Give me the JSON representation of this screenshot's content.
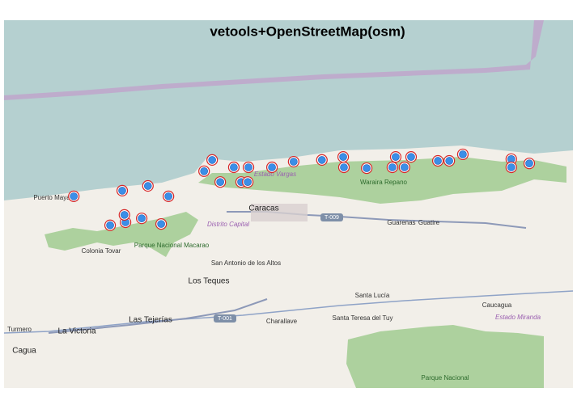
{
  "title": "vetools+OpenStreetMap(osm)",
  "places": [
    "Puerto Maya",
    "Colonia Tovar",
    "Parque Nacional Macarao",
    "Los Teques",
    "La Victoria",
    "Las Tejerías",
    "Cagua",
    "Turmero",
    "Caracas",
    "Distrito Capital",
    "Estado Vargas",
    "Waraira Repano",
    "Guarenas",
    "Guatire",
    "San Antonio de los Altos",
    "Santa Lucía",
    "Santa Teresa del Tuy",
    "Caucagua",
    "Estado Miranda",
    "Charallave",
    "Parque Nacional",
    "T-009",
    "T-001"
  ],
  "points": [
    {
      "lon": -67.26,
      "lat": 10.543
    },
    {
      "lon": -67.128,
      "lat": 10.556
    },
    {
      "lon": -67.058,
      "lat": 10.567
    },
    {
      "lon": -67.002,
      "lat": 10.543
    },
    {
      "lon": -67.161,
      "lat": 10.476
    },
    {
      "lon": -67.119,
      "lat": 10.483
    },
    {
      "lon": -67.122,
      "lat": 10.5
    },
    {
      "lon": -67.075,
      "lat": 10.492
    },
    {
      "lon": -67.022,
      "lat": 10.479
    },
    {
      "lon": -66.905,
      "lat": 10.601
    },
    {
      "lon": -66.883,
      "lat": 10.627
    },
    {
      "lon": -66.861,
      "lat": 10.576
    },
    {
      "lon": -66.824,
      "lat": 10.61
    },
    {
      "lon": -66.804,
      "lat": 10.576
    },
    {
      "lon": -66.784,
      "lat": 10.61
    },
    {
      "lon": -66.786,
      "lat": 10.576
    },
    {
      "lon": -66.72,
      "lat": 10.61
    },
    {
      "lon": -66.661,
      "lat": 10.623
    },
    {
      "lon": -66.584,
      "lat": 10.627
    },
    {
      "lon": -66.526,
      "lat": 10.634
    },
    {
      "lon": -66.524,
      "lat": 10.61
    },
    {
      "lon": -66.462,
      "lat": 10.608
    },
    {
      "lon": -66.392,
      "lat": 10.61
    },
    {
      "lon": -66.383,
      "lat": 10.634
    },
    {
      "lon": -66.359,
      "lat": 10.61
    },
    {
      "lon": -66.341,
      "lat": 10.634
    },
    {
      "lon": -66.268,
      "lat": 10.625
    },
    {
      "lon": -66.237,
      "lat": 10.625
    },
    {
      "lon": -66.2,
      "lat": 10.64
    },
    {
      "lon": -66.068,
      "lat": 10.629
    },
    {
      "lon": -66.068,
      "lat": 10.61
    },
    {
      "lon": -66.019,
      "lat": 10.619
    }
  ]
}
